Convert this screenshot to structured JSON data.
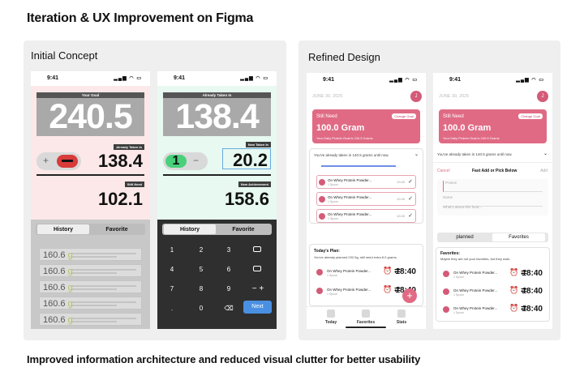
{
  "heading": "Iteration & UX Improvement on Figma",
  "footer": "Improved information architecture and reduced visual clutter for better usability",
  "left_panel": {
    "title": "Initial Concept",
    "phone1": {
      "time": "9:41",
      "goal_label": "Your Goal",
      "goal_value": "240.5",
      "taken_label": "Already Taken In",
      "taken_value": "138.4",
      "still_label": "Still Need",
      "still_value": "102.1",
      "minus": "−",
      "plus": "+",
      "tabs": [
        "History",
        "Favorite"
      ],
      "rows": [
        {
          "value": "160.6",
          "unit": "g"
        },
        {
          "value": "160.6",
          "unit": "g"
        },
        {
          "value": "160.6",
          "unit": "g"
        },
        {
          "value": "160.6",
          "unit": "g"
        },
        {
          "value": "160.6",
          "unit": "g"
        }
      ],
      "colors": {
        "bg": "#fce8e8"
      }
    },
    "phone2": {
      "time": "9:41",
      "taken_label": "Already Taken In",
      "taken_value": "138.4",
      "new_label": "New Taken In",
      "new_value": "20.2",
      "achieve_label": "New Achievement",
      "achieve_value": "158.6",
      "tabs": [
        "History",
        "Favorite"
      ],
      "keys": [
        "1",
        "2",
        "3",
        "",
        "4",
        "5",
        "6",
        "",
        "7",
        "8",
        "9",
        "− +",
        ".",
        "0",
        "⌫",
        "Next"
      ],
      "colors": {
        "bg": "#e7f9f1",
        "keypad": "#2f2f2f",
        "next": "#4a90e2"
      }
    }
  },
  "right_panel": {
    "title": "Refined Design",
    "phone3": {
      "time": "9:41",
      "date": "JUNE 30, 2025",
      "avatar": "J",
      "still_need": "Still Need",
      "change_goal": "Change Goal",
      "amount": "100.0 Gram",
      "goal_note": "Your Daily Protein Goal is 240.5 Grams",
      "taken_note": "You've already taken in 140.5 grams until now.",
      "items": [
        {
          "name": "On Whey Protein Powder...",
          "sub": "1 Spoon",
          "time": "10:45"
        },
        {
          "name": "On Whey Protein Powder...",
          "sub": "1 Spoon",
          "time": "10:45"
        },
        {
          "name": "On Whey Protein Powder...",
          "sub": "1 Spoon",
          "time": "10:45"
        }
      ],
      "plan_title": "Today's Plan:",
      "plan_note": "You've already planned 232.5g, still need extra 8.0 grams.",
      "plan_items": [
        {
          "name": "On Whey Protein Powder...",
          "sub": "1 Spoon",
          "time": "18:40"
        },
        {
          "name": "On Whey Protein Powder...",
          "sub": "1 Spoon",
          "time": "18:40"
        }
      ],
      "fab": "+",
      "nav": [
        "Today",
        "Favorites",
        "Stats"
      ]
    },
    "phone4": {
      "time": "9:41",
      "date": "JUNE 30, 2025",
      "avatar": "J",
      "still_need": "Still Need",
      "change_goal": "Change Goal",
      "amount": "100.0 Gram",
      "goal_note": "Your Daily Protein Goal is 240.5 Grams",
      "taken_note": "You've already taken in 140.5 grams until now.",
      "cancel": "Cancel",
      "sheet_title": "Fast Add or Pick Below",
      "add": "Add",
      "fields": [
        "Protein",
        "Name",
        "What's about this food..."
      ],
      "tabs": [
        "planned",
        "Favorites"
      ],
      "fav_title": "Favorites:",
      "fav_note": "Maybe they are not your favorites, but they work.",
      "fav_items": [
        {
          "name": "On Whey Protein Powder...",
          "sub": "1 Spoon",
          "time": "18:40"
        },
        {
          "name": "On Whey Protein Powder...",
          "sub": "1 Spoon",
          "time": "18:40"
        },
        {
          "name": "On Whey Protein Powder...",
          "sub": "1 Spoon",
          "time": "18:40"
        }
      ]
    },
    "colors": {
      "accent": "#e06a84",
      "accent_light": "#fbe4ea"
    }
  }
}
